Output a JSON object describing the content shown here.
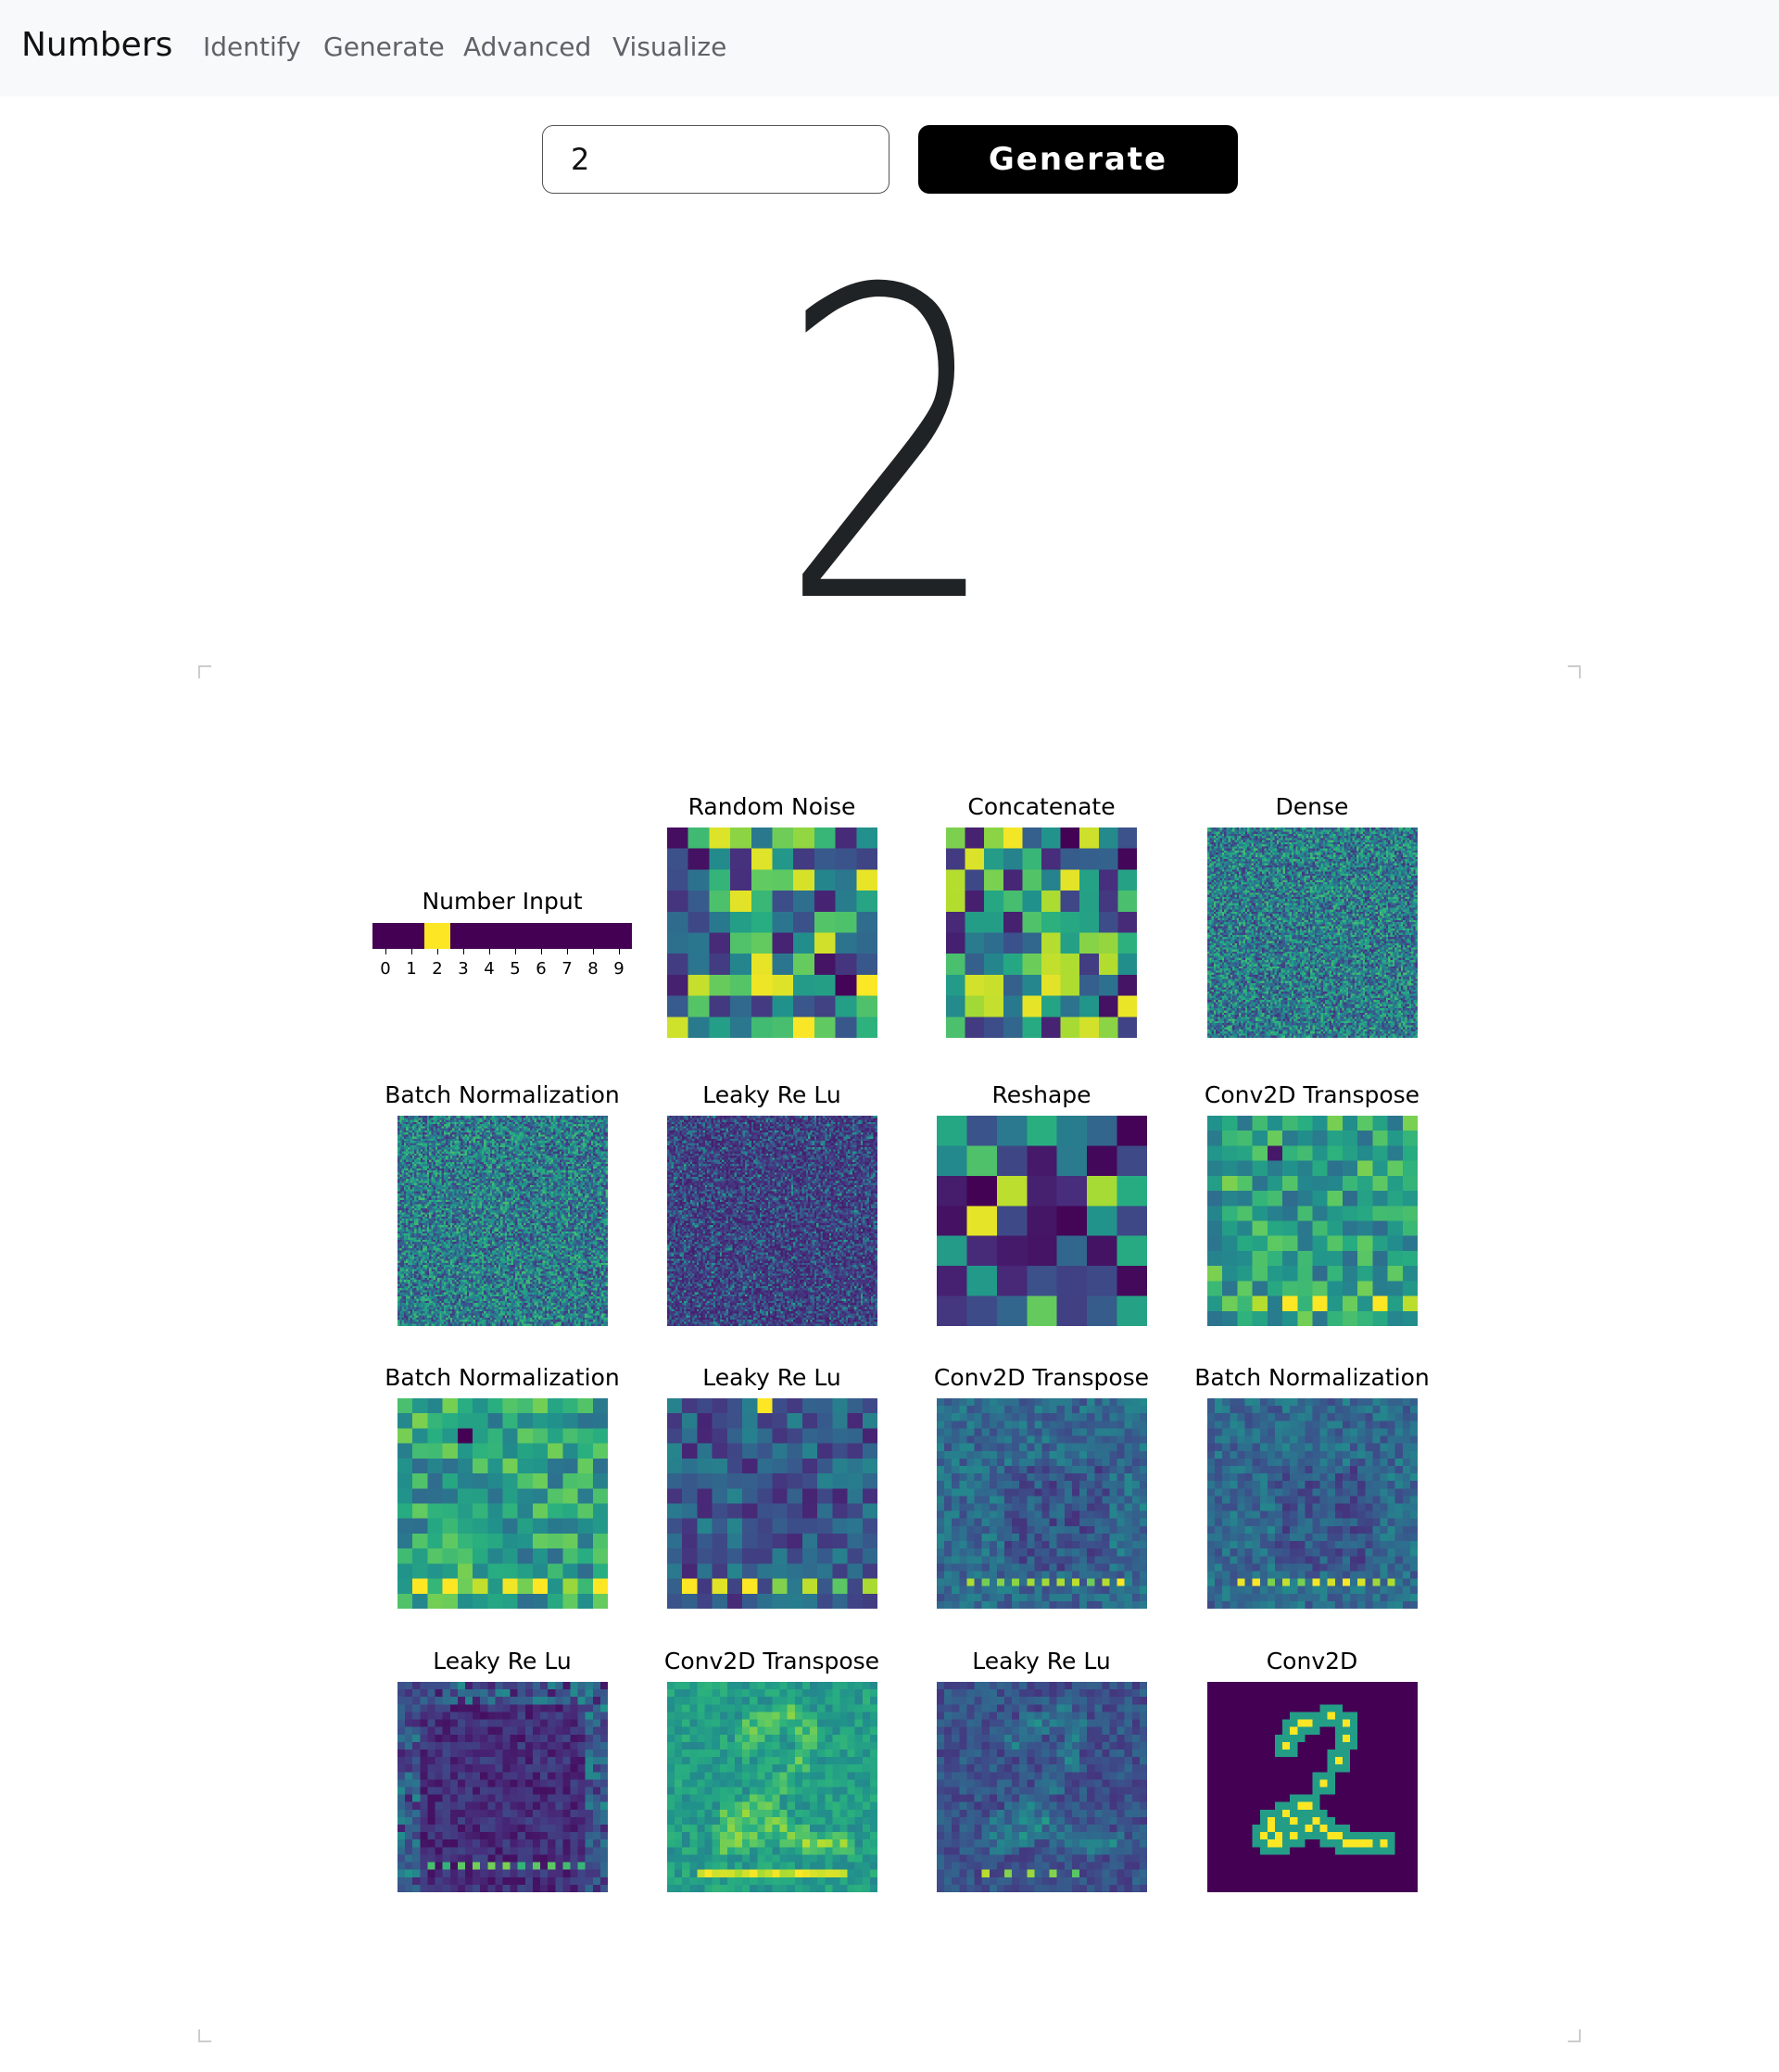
{
  "navbar": {
    "brand": "Numbers",
    "links": [
      "Identify",
      "Generate",
      "Advanced",
      "Visualize"
    ]
  },
  "controls": {
    "input_value": "2",
    "generate_label": "Generate"
  },
  "display": {
    "digit": "2"
  },
  "visualization": {
    "number_input": {
      "title": "Number Input",
      "ticks": [
        "0",
        "1",
        "2",
        "3",
        "4",
        "5",
        "6",
        "7",
        "8",
        "9"
      ],
      "active_index": 2
    },
    "panels": [
      {
        "title": "Random Noise",
        "grid": 10,
        "style": "noise"
      },
      {
        "title": "Concatenate",
        "grid": 10,
        "style": "noise"
      },
      {
        "title": "Dense",
        "grid": 100,
        "style": "fine-mid"
      },
      {
        "title": "Batch Normalization",
        "grid": 100,
        "style": "fine-mid"
      },
      {
        "title": "Leaky Re Lu",
        "grid": 100,
        "style": "fine-dark"
      },
      {
        "title": "Reshape",
        "grid": 7,
        "style": "reshape"
      },
      {
        "title": "Conv2D Transpose",
        "grid": 14,
        "style": "map14"
      },
      {
        "title": "Batch Normalization",
        "grid": 14,
        "style": "map14"
      },
      {
        "title": "Leaky Re Lu",
        "grid": 14,
        "style": "map14-dark"
      },
      {
        "title": "Conv2D Transpose",
        "grid": 28,
        "style": "map28-mid"
      },
      {
        "title": "Batch Normalization",
        "grid": 28,
        "style": "map28-mid"
      },
      {
        "title": "Leaky Re Lu",
        "grid": 28,
        "style": "map28-dark"
      },
      {
        "title": "Conv2D Transpose",
        "grid": 28,
        "style": "map28-bright"
      },
      {
        "title": "Leaky Re Lu",
        "grid": 28,
        "style": "map28-dim"
      },
      {
        "title": "Conv2D",
        "grid": 28,
        "style": "digit"
      }
    ],
    "colormap": [
      "#440154",
      "#472d7b",
      "#3b528b",
      "#2c728e",
      "#21918c",
      "#28ae80",
      "#5ec962",
      "#addc30",
      "#fde725"
    ]
  }
}
